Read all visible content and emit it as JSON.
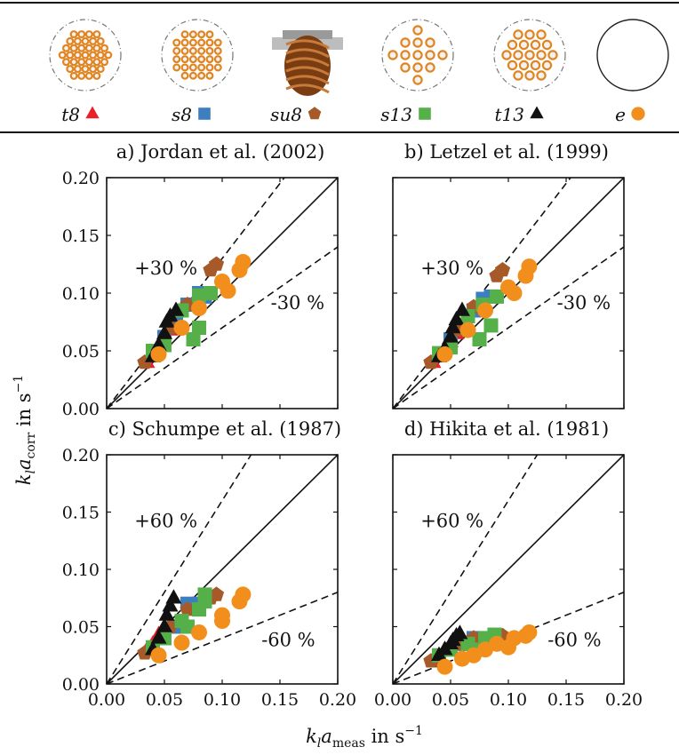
{
  "legend": [
    {
      "label": "t8",
      "marker": "triangle",
      "color": "#e8202a",
      "pattern": "dense-hex"
    },
    {
      "label": "s8",
      "marker": "square",
      "color": "#3c7fc1",
      "pattern": "square-grid"
    },
    {
      "label": "su8",
      "marker": "pentagon",
      "color": "#a65a2a",
      "pattern": "spiral-render"
    },
    {
      "label": "s13",
      "marker": "square",
      "color": "#56b04a",
      "pattern": "sparse-grid"
    },
    {
      "label": "t13",
      "marker": "triangle",
      "color": "#111111",
      "pattern": "sparse-hex"
    },
    {
      "label": "e",
      "marker": "circle",
      "color": "#f28e1c",
      "pattern": "empty"
    }
  ],
  "axes": {
    "xlabel_main": "k",
    "xlabel_sub_l": "l",
    "xlabel_a": "a",
    "xlabel_sub": "meas",
    "xlabel_unit": "in s",
    "xlabel_exp": "−1",
    "ylabel_main": "k",
    "ylabel_sub_l": "l",
    "ylabel_a": "a",
    "ylabel_sub": "corr",
    "ylabel_unit": "in s",
    "ylabel_exp": "−1",
    "xticks": [
      "0.00",
      "0.05",
      "0.10",
      "0.15",
      "0.20"
    ],
    "yticks": [
      "0.00",
      "0.05",
      "0.10",
      "0.15",
      "0.20"
    ]
  },
  "chart_data": [
    {
      "type": "scatter",
      "title": "a) Jordan et al. (2002)",
      "xlim": [
        0,
        0.2
      ],
      "ylim": [
        0,
        0.2
      ],
      "reference_lines": [
        {
          "slope": 1.0,
          "style": "solid"
        },
        {
          "slope": 1.3,
          "style": "dashed",
          "label": "+30 %"
        },
        {
          "slope": 0.7,
          "style": "dashed",
          "label": "-30 %"
        }
      ],
      "series": [
        {
          "name": "t8",
          "points": [
            [
              0.035,
              0.04
            ],
            [
              0.04,
              0.045
            ],
            [
              0.045,
              0.052
            ],
            [
              0.05,
              0.06
            ],
            [
              0.055,
              0.068
            ]
          ]
        },
        {
          "name": "s8",
          "points": [
            [
              0.05,
              0.062
            ],
            [
              0.06,
              0.075
            ],
            [
              0.07,
              0.09
            ],
            [
              0.08,
              0.1
            ],
            [
              0.085,
              0.097
            ]
          ]
        },
        {
          "name": "su8",
          "points": [
            [
              0.033,
              0.04
            ],
            [
              0.055,
              0.07
            ],
            [
              0.07,
              0.09
            ],
            [
              0.09,
              0.12
            ],
            [
              0.095,
              0.125
            ]
          ]
        },
        {
          "name": "s13",
          "points": [
            [
              0.04,
              0.05
            ],
            [
              0.05,
              0.055
            ],
            [
              0.065,
              0.085
            ],
            [
              0.08,
              0.098
            ],
            [
              0.09,
              0.1
            ],
            [
              0.08,
              0.07
            ],
            [
              0.075,
              0.06
            ]
          ]
        },
        {
          "name": "t13",
          "points": [
            [
              0.04,
              0.045
            ],
            [
              0.045,
              0.055
            ],
            [
              0.05,
              0.065
            ],
            [
              0.052,
              0.075
            ],
            [
              0.055,
              0.08
            ],
            [
              0.06,
              0.085
            ]
          ]
        },
        {
          "name": "e",
          "points": [
            [
              0.045,
              0.047
            ],
            [
              0.065,
              0.07
            ],
            [
              0.08,
              0.087
            ],
            [
              0.1,
              0.11
            ],
            [
              0.105,
              0.102
            ],
            [
              0.115,
              0.12
            ],
            [
              0.118,
              0.127
            ]
          ]
        }
      ]
    },
    {
      "type": "scatter",
      "title": "b) Letzel et al. (1999)",
      "xlim": [
        0,
        0.2
      ],
      "ylim": [
        0,
        0.2
      ],
      "reference_lines": [
        {
          "slope": 1.0,
          "style": "solid"
        },
        {
          "slope": 1.3,
          "style": "dashed",
          "label": "+30 %"
        },
        {
          "slope": 0.7,
          "style": "dashed",
          "label": "-30 %"
        }
      ],
      "series": [
        {
          "name": "t8",
          "points": [
            [
              0.035,
              0.04
            ],
            [
              0.04,
              0.045
            ],
            [
              0.045,
              0.052
            ],
            [
              0.05,
              0.058
            ],
            [
              0.055,
              0.065
            ]
          ]
        },
        {
          "name": "s8",
          "points": [
            [
              0.05,
              0.06
            ],
            [
              0.06,
              0.072
            ],
            [
              0.07,
              0.085
            ],
            [
              0.078,
              0.095
            ],
            [
              0.085,
              0.097
            ]
          ]
        },
        {
          "name": "su8",
          "points": [
            [
              0.033,
              0.04
            ],
            [
              0.055,
              0.068
            ],
            [
              0.07,
              0.088
            ],
            [
              0.09,
              0.115
            ],
            [
              0.095,
              0.12
            ]
          ]
        },
        {
          "name": "s13",
          "points": [
            [
              0.04,
              0.048
            ],
            [
              0.05,
              0.053
            ],
            [
              0.065,
              0.08
            ],
            [
              0.078,
              0.09
            ],
            [
              0.09,
              0.097
            ],
            [
              0.085,
              0.072
            ],
            [
              0.075,
              0.06
            ]
          ]
        },
        {
          "name": "t13",
          "points": [
            [
              0.04,
              0.045
            ],
            [
              0.045,
              0.052
            ],
            [
              0.05,
              0.062
            ],
            [
              0.052,
              0.07
            ],
            [
              0.055,
              0.077
            ],
            [
              0.06,
              0.085
            ]
          ]
        },
        {
          "name": "e",
          "points": [
            [
              0.045,
              0.047
            ],
            [
              0.065,
              0.068
            ],
            [
              0.08,
              0.085
            ],
            [
              0.1,
              0.105
            ],
            [
              0.105,
              0.1
            ],
            [
              0.115,
              0.115
            ],
            [
              0.118,
              0.123
            ]
          ]
        }
      ]
    },
    {
      "type": "scatter",
      "title": "c) Schumpe et al. (1987)",
      "xlim": [
        0,
        0.2
      ],
      "ylim": [
        0,
        0.2
      ],
      "reference_lines": [
        {
          "slope": 1.0,
          "style": "solid"
        },
        {
          "slope": 1.6,
          "style": "dashed",
          "label": "+60 %"
        },
        {
          "slope": 0.4,
          "style": "dashed",
          "label": "-60 %"
        }
      ],
      "series": [
        {
          "name": "t8",
          "points": [
            [
              0.035,
              0.03
            ],
            [
              0.04,
              0.035
            ],
            [
              0.045,
              0.043
            ]
          ]
        },
        {
          "name": "s8",
          "points": [
            [
              0.05,
              0.04
            ],
            [
              0.06,
              0.05
            ],
            [
              0.07,
              0.07
            ],
            [
              0.08,
              0.07
            ]
          ]
        },
        {
          "name": "su8",
          "points": [
            [
              0.033,
              0.027
            ],
            [
              0.055,
              0.05
            ],
            [
              0.07,
              0.065
            ],
            [
              0.09,
              0.075
            ],
            [
              0.095,
              0.078
            ]
          ]
        },
        {
          "name": "s13",
          "points": [
            [
              0.04,
              0.032
            ],
            [
              0.05,
              0.04
            ],
            [
              0.065,
              0.055
            ],
            [
              0.08,
              0.065
            ],
            [
              0.085,
              0.072
            ],
            [
              0.085,
              0.078
            ],
            [
              0.07,
              0.05
            ]
          ]
        },
        {
          "name": "t13",
          "points": [
            [
              0.04,
              0.03
            ],
            [
              0.045,
              0.04
            ],
            [
              0.05,
              0.05
            ],
            [
              0.052,
              0.06
            ],
            [
              0.055,
              0.068
            ],
            [
              0.058,
              0.075
            ]
          ]
        },
        {
          "name": "e",
          "points": [
            [
              0.045,
              0.025
            ],
            [
              0.065,
              0.036
            ],
            [
              0.08,
              0.045
            ],
            [
              0.1,
              0.055
            ],
            [
              0.1,
              0.06
            ],
            [
              0.115,
              0.072
            ],
            [
              0.118,
              0.078
            ]
          ]
        }
      ]
    },
    {
      "type": "scatter",
      "title": "d) Hikita et al. (1981)",
      "xlim": [
        0,
        0.2
      ],
      "ylim": [
        0,
        0.2
      ],
      "reference_lines": [
        {
          "slope": 1.0,
          "style": "solid"
        },
        {
          "slope": 1.6,
          "style": "dashed",
          "label": "+60 %"
        },
        {
          "slope": 0.4,
          "style": "dashed",
          "label": "-60 %"
        }
      ],
      "series": [
        {
          "name": "t8",
          "points": [
            [
              0.035,
              0.02
            ],
            [
              0.04,
              0.025
            ],
            [
              0.045,
              0.03
            ]
          ]
        },
        {
          "name": "s8",
          "points": [
            [
              0.05,
              0.03
            ],
            [
              0.06,
              0.035
            ],
            [
              0.07,
              0.04
            ],
            [
              0.08,
              0.038
            ]
          ]
        },
        {
          "name": "su8",
          "points": [
            [
              0.033,
              0.02
            ],
            [
              0.055,
              0.035
            ],
            [
              0.07,
              0.04
            ],
            [
              0.09,
              0.04
            ],
            [
              0.095,
              0.042
            ]
          ]
        },
        {
          "name": "s13",
          "points": [
            [
              0.04,
              0.025
            ],
            [
              0.05,
              0.03
            ],
            [
              0.065,
              0.035
            ],
            [
              0.08,
              0.04
            ],
            [
              0.088,
              0.043
            ],
            [
              0.085,
              0.038
            ],
            [
              0.07,
              0.03
            ]
          ]
        },
        {
          "name": "t13",
          "points": [
            [
              0.04,
              0.025
            ],
            [
              0.045,
              0.03
            ],
            [
              0.05,
              0.035
            ],
            [
              0.052,
              0.038
            ],
            [
              0.055,
              0.042
            ],
            [
              0.058,
              0.044
            ]
          ]
        },
        {
          "name": "e",
          "points": [
            [
              0.045,
              0.015
            ],
            [
              0.06,
              0.022
            ],
            [
              0.07,
              0.025
            ],
            [
              0.08,
              0.03
            ],
            [
              0.09,
              0.035
            ],
            [
              0.1,
              0.032
            ],
            [
              0.105,
              0.04
            ],
            [
              0.115,
              0.042
            ],
            [
              0.118,
              0.045
            ]
          ]
        }
      ]
    }
  ]
}
